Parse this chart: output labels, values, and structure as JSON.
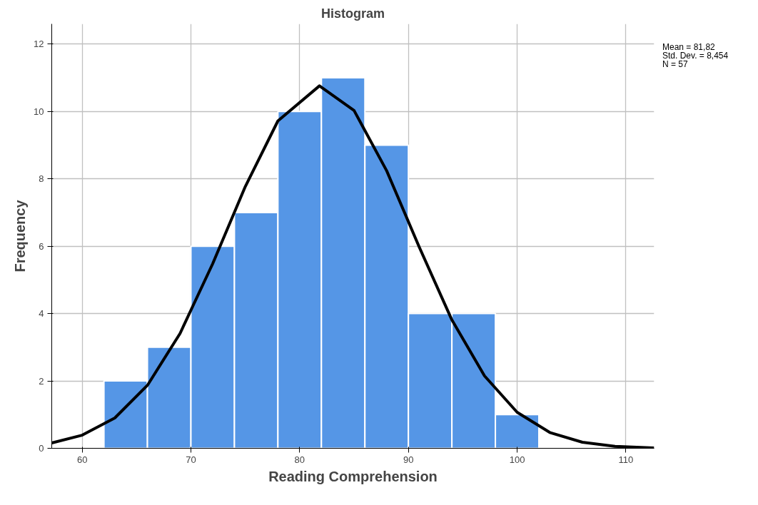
{
  "chart_data": {
    "type": "histogram",
    "title": "Histogram",
    "xlabel": "Reading Comprehension",
    "ylabel": "Frequency",
    "bins": [
      62,
      66,
      70,
      74,
      78,
      82,
      86,
      90,
      94,
      98,
      102
    ],
    "values": [
      2,
      3,
      6,
      7,
      10,
      11,
      9,
      4,
      4,
      1
    ],
    "color": "#5596e6",
    "series": [
      {
        "type": "line",
        "color": "#000000",
        "x": [
          57.2,
          60,
          63,
          66,
          69,
          72,
          75,
          78,
          81.82,
          85,
          88,
          91,
          94,
          97,
          100,
          103,
          106,
          109,
          112.6
        ],
        "values": [
          0.16,
          0.39,
          0.9,
          1.87,
          3.41,
          5.48,
          7.77,
          9.72,
          10.76,
          10.03,
          8.24,
          5.97,
          3.81,
          2.15,
          1.07,
          0.47,
          0.18,
          0.06,
          0.01
        ]
      }
    ],
    "xlim": [
      57.2,
      112.6
    ],
    "ylim": [
      0,
      12.6
    ],
    "xticks": [
      60,
      70,
      80,
      90,
      100,
      110
    ],
    "yticks": [
      0,
      2,
      4,
      6,
      8,
      10,
      12
    ],
    "grid": true,
    "line_style": "solid",
    "marker": "none",
    "annotations": [
      "Mean = 81,82",
      "Std. Dev. = 8,454",
      "N = 57"
    ]
  }
}
